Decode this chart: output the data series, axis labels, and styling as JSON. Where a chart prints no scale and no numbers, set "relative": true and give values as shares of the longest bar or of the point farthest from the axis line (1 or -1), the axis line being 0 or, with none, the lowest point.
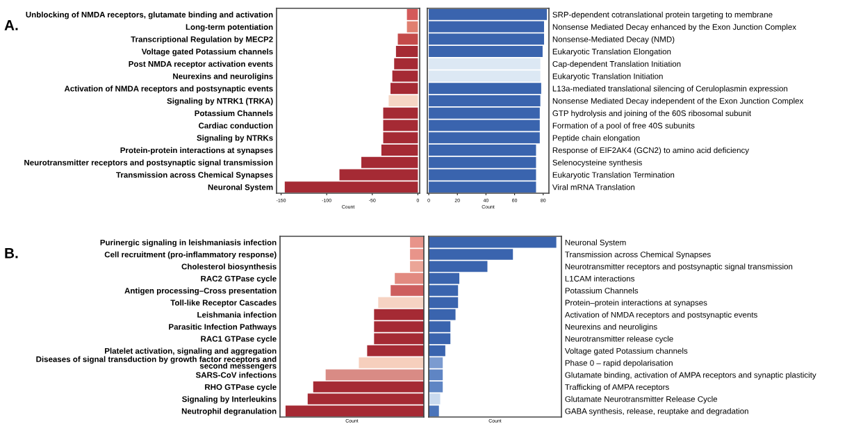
{
  "chart_data": [
    {
      "type": "bar",
      "orientation": "horizontal",
      "title": "A.",
      "xlabel": "Count",
      "categories": [
        "Unblocking of NMDA receptors, glutamate binding and activation",
        "Long-term potentiation",
        "Transcriptional Regulation by MECP2",
        "Voltage gated Potassium channels",
        "Post NMDA receptor activation events",
        "Neurexins and neuroligins",
        "Activation of NMDA receptors and postsynaptic events",
        "Signaling by NTRK1 (TRKA)",
        "Potassium Channels",
        "Cardiac conduction",
        "Signaling by NTRKs",
        "Protein-protein interactions at synapses",
        "Neurotransmitter receptors and postsynaptic signal transmission",
        "Transmission across Chemical Synapses",
        "Neuronal System"
      ],
      "values": [
        -12,
        -12,
        -22,
        -24,
        -26,
        -28,
        -30,
        -32,
        -38,
        -38,
        -38,
        -40,
        -62,
        -86,
        -146
      ],
      "colors": [
        "#d45a5a",
        "#e07f70",
        "#c44a4a",
        "#a52a34",
        "#a52a34",
        "#a52a34",
        "#a52a34",
        "#f6d5c4",
        "#a52a34",
        "#a52a34",
        "#a52a34",
        "#a52a34",
        "#a52a34",
        "#a52a34",
        "#a52a34"
      ],
      "xlim": [
        -155,
        2
      ],
      "xticks": [
        -150,
        -100,
        -50,
        0
      ]
    },
    {
      "type": "bar",
      "orientation": "horizontal",
      "xlabel": "Count",
      "categories": [
        "SRP-dependent cotranslational protein targeting to membrane",
        "Nonsense Mediated Decay enhanced by the Exon Junction Complex",
        "Nonsense-Mediated Decay (NMD)",
        "Eukaryotic Translation Elongation",
        "Cap-dependent Translation Initiation",
        "Eukaryotic Translation Initiation",
        "L13a-mediated translational silencing of Ceruloplasmin expression",
        "Nonsense Mediated Decay independent of the Exon Junction Complex",
        "GTP hydrolysis and joining of the 60S ribosomal subunit",
        "Formation of a pool of free 40S subunits",
        "Peptide chain elongation",
        "Response of EIF2AK4 (GCN2) to amino acid deficiency",
        "Selenocysteine synthesis",
        "Eukaryotic Translation Termination",
        "Viral mRNA Translation"
      ],
      "values": [
        82.6,
        80.6,
        80.6,
        79.6,
        78,
        78,
        78.6,
        78,
        77.6,
        77.6,
        77.6,
        75,
        75,
        75,
        75
      ],
      "colors": [
        "#3a64ae",
        "#3a64ae",
        "#3a64ae",
        "#3a64ae",
        "#dce8f4",
        "#dce8f4",
        "#3a64ae",
        "#3a64ae",
        "#3a64ae",
        "#3a64ae",
        "#3a64ae",
        "#3a64ae",
        "#3a64ae",
        "#3a64ae",
        "#3a64ae"
      ],
      "xlim": [
        -1,
        84
      ],
      "xticks": [
        0,
        20,
        40,
        60,
        80
      ]
    },
    {
      "type": "bar",
      "orientation": "horizontal",
      "title": "B.",
      "xlabel": "Count",
      "relative": true,
      "categories": [
        "Purinergic signaling in leishmaniasis infection",
        "Cell recruitment (pro-inflammatory response)",
        "Cholesterol biosynthesis",
        "RAC2 GTPase cycle",
        "Antigen processing–Cross presentation",
        "Toll-like Receptor Cascades",
        "Leishmania infection",
        "Parasitic Infection Pathways",
        "RAC1 GTPase cycle",
        "Platelet activation, signaling and aggregation",
        "Diseases of signal transduction by growth factor receptors and\nsecond messengers",
        "SARS-CoV infections",
        "RHO GTPase cycle",
        "Signaling by Interleukins",
        "Neutrophil degranulation"
      ],
      "values": [
        -0.1,
        -0.1,
        -0.1,
        -0.21,
        -0.24,
        -0.33,
        -0.36,
        -0.36,
        -0.36,
        -0.41,
        -0.47,
        -0.71,
        -0.8,
        -0.84,
        -1
      ],
      "colors": [
        "#e8948a",
        "#e8948a",
        "#eba597",
        "#e28a80",
        "#cd5e5e",
        "#f6d3c3",
        "#a52a34",
        "#a52a34",
        "#a52a34",
        "#a52a34",
        "#f6cfbd",
        "#d98b85",
        "#a52a34",
        "#a52a34",
        "#a52a34"
      ]
    },
    {
      "type": "bar",
      "orientation": "horizontal",
      "xlabel": "Count",
      "relative": true,
      "categories": [
        "Neuronal System",
        "Transmission across Chemical Synapses",
        "Neurotransmitter receptors and postsynaptic signal transmission",
        "L1CAM interactions",
        "Potassium Channels",
        "Protein–protein interactions at synapses",
        "Activation of NMDA receptors and postsynaptic events",
        "Neurexins and neuroligins",
        "Neurotransmitter release cycle",
        "Voltage gated Potassium channels",
        "Phase 0 – rapid depolarisation",
        "Glutamate binding, activation of AMPA receptors and synaptic plasticity",
        "Trafficking of AMPA receptors",
        "Glutamate Neurotransmitter Release Cycle",
        "GABA synthesis, release, reuptake and degradation"
      ],
      "values": [
        1,
        0.66,
        0.46,
        0.24,
        0.23,
        0.23,
        0.21,
        0.17,
        0.17,
        0.13,
        0.11,
        0.11,
        0.11,
        0.09,
        0.08
      ],
      "colors": [
        "#3a64ae",
        "#3a64ae",
        "#3a64ae",
        "#3a64ae",
        "#3a64ae",
        "#3a64ae",
        "#3a64ae",
        "#3a64ae",
        "#3a64ae",
        "#3a64ae",
        "#7b9bd0",
        "#5f85c4",
        "#5f85c4",
        "#c9d9ee",
        "#4b74ba"
      ]
    }
  ]
}
